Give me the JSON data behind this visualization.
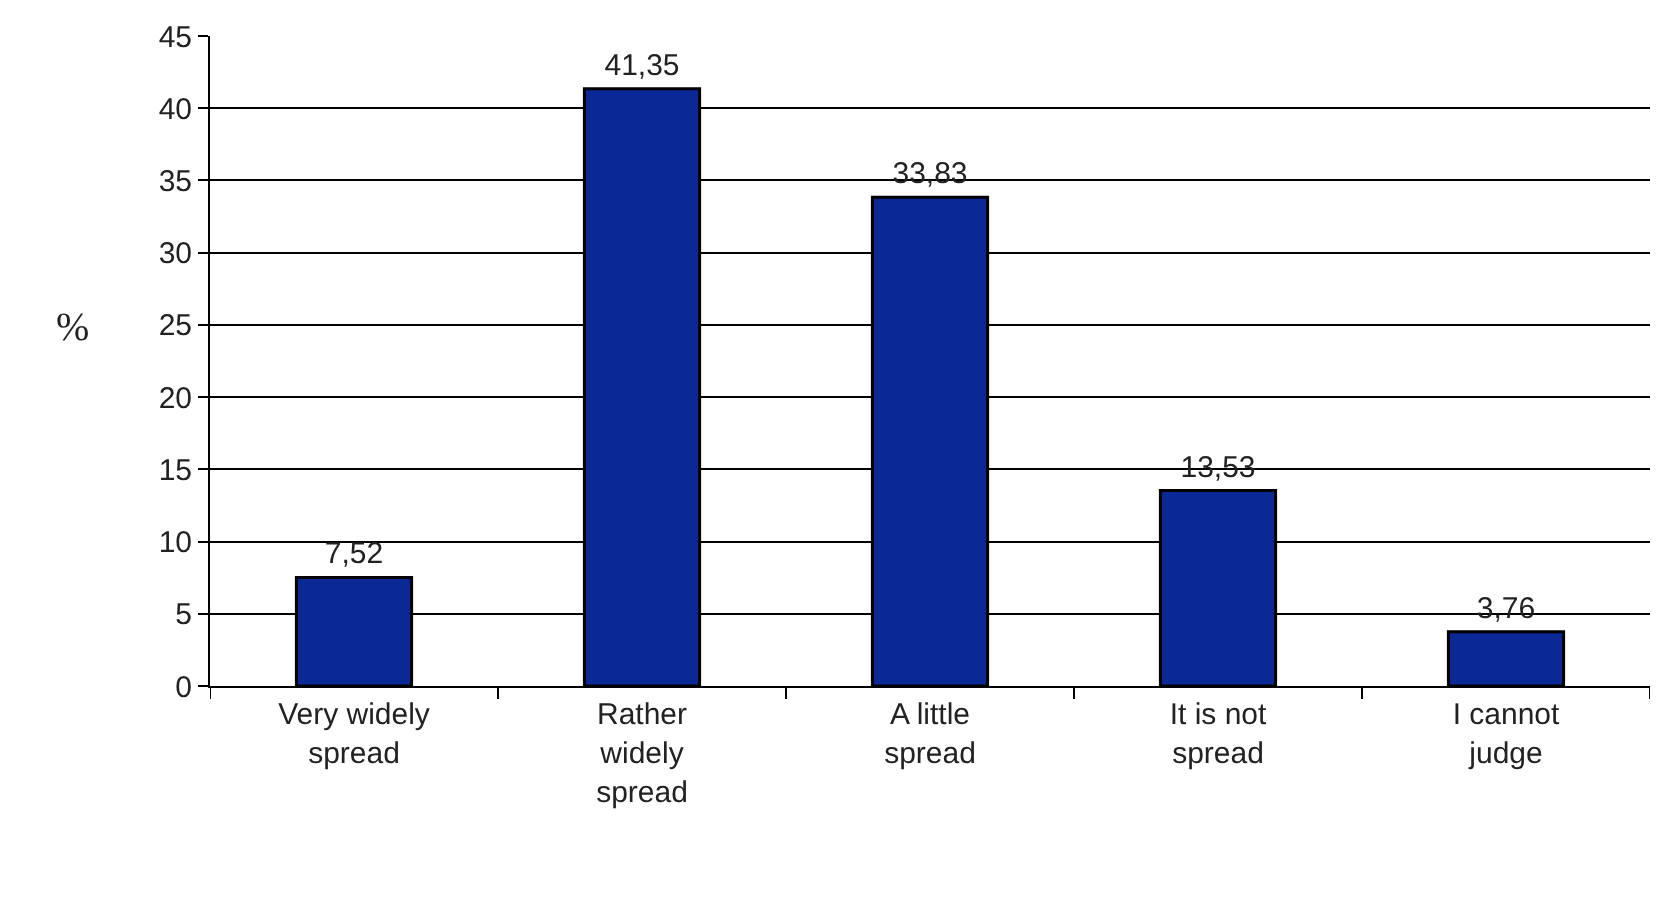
{
  "chart_data": {
    "type": "bar",
    "ylabel": "%",
    "categories": [
      "Very widely\nspread",
      "Rather\nwidely\nspread",
      "A little\nspread",
      "It is not\nspread",
      "I cannot\njudge"
    ],
    "values": [
      7.52,
      41.35,
      33.83,
      13.53,
      3.76
    ],
    "value_labels": [
      "7,52",
      "41,35",
      "33,83",
      "13,53",
      "3,76"
    ],
    "color": "#0a2896",
    "ylim": [
      0,
      45
    ],
    "yticks": [
      0,
      5,
      10,
      15,
      20,
      25,
      30,
      35,
      40,
      45
    ],
    "grid": "y",
    "legend": false
  }
}
